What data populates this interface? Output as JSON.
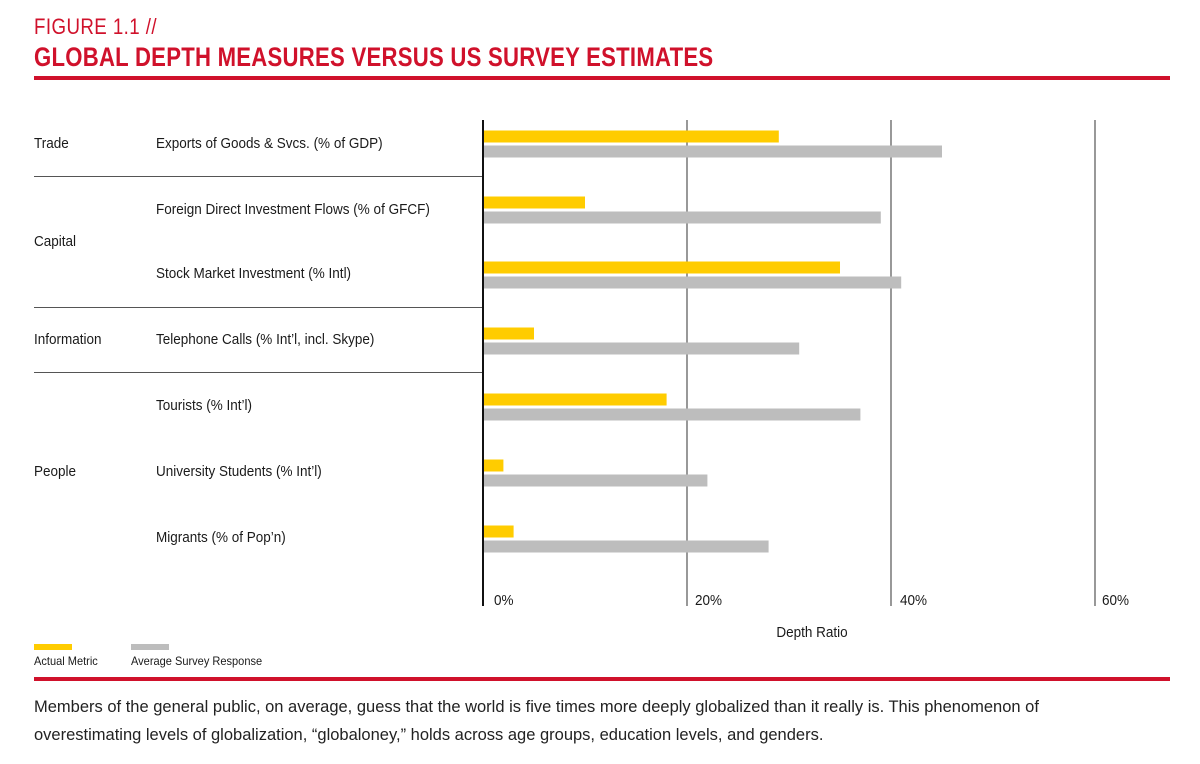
{
  "figure": {
    "label": "FIGURE 1.1 //",
    "title": "GLOBAL DEPTH MEASURES VERSUS US SURVEY ESTIMATES"
  },
  "colors": {
    "brand_red": "#d0112b",
    "actual": "#ffcc00",
    "survey": "#bdbdbd",
    "gridline": "#555555"
  },
  "categories": [
    {
      "name": "Trade"
    },
    {
      "name": "Capital"
    },
    {
      "name": "Information"
    },
    {
      "name": "People"
    }
  ],
  "chart_data": {
    "type": "bar",
    "orientation": "horizontal",
    "categories": [
      "Exports of Goods & Svcs. (% of GDP)",
      "Foreign Direct Investment Flows (% of GFCF)",
      "Stock Market Investment (% Intl)",
      "Telephone Calls (% Int’l, incl. Skype)",
      "Tourists (% Int’l)",
      "University Students (% Int’l)",
      "Migrants (% of Pop’n)"
    ],
    "series": [
      {
        "name": "Actual Metric",
        "values": [
          29,
          10,
          35,
          5,
          18,
          2,
          3
        ]
      },
      {
        "name": "Average Survey Response",
        "values": [
          45,
          39,
          41,
          31,
          37,
          22,
          28
        ]
      }
    ],
    "xlabel": "Depth Ratio",
    "xlim": [
      0,
      60
    ],
    "xticks": [
      "0%",
      "20%",
      "40%",
      "60%"
    ],
    "grid": true,
    "legend_position": "bottom-left"
  },
  "legend": [
    {
      "label": "Actual Metric"
    },
    {
      "label": "Average Survey Response"
    }
  ],
  "note": {
    "line1": "Members of the general public, on average, guess that the world is five times more deeply globalized than it really is. This phenomenon of",
    "line2": "overestimating levels of globalization, “globaloney,” holds across age groups, education levels, and genders."
  }
}
